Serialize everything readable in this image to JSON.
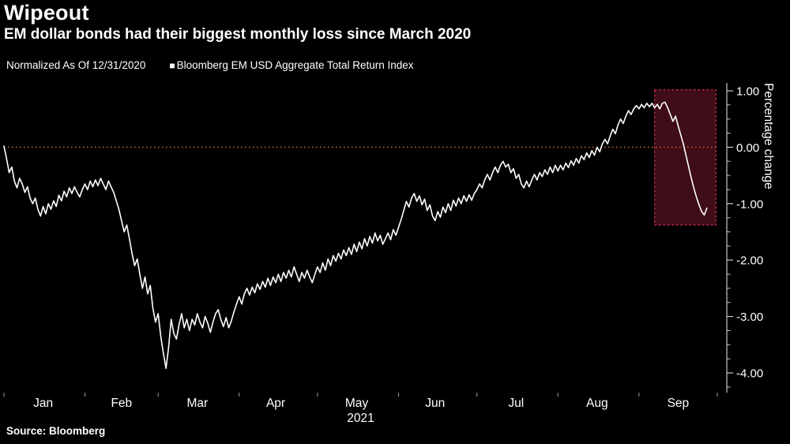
{
  "header": {
    "title": "Wipeout",
    "subtitle": "EM dollar bonds had their biggest monthly loss since March 2020"
  },
  "legend": {
    "normalized_label": "Normalized As Of 12/31/2020",
    "series_marker": "■",
    "series_label": "Bloomberg EM USD Aggregate Total Return Index"
  },
  "source": "Source: Bloomberg",
  "colors": {
    "background": "#000000",
    "text": "#ffffff",
    "axis": "#c8c8c8",
    "x_tick": "#9a9a9a"
  },
  "chart_data": {
    "type": "line",
    "title": "Wipeout",
    "subtitle": "EM dollar bonds had their biggest monthly loss since March 2020",
    "xlabel": "2021",
    "ylabel": "Percentage change",
    "x_unit": "day of year 2021",
    "xlim": [
      0,
      273
    ],
    "ylim": [
      -4.35,
      1.14
    ],
    "grid": false,
    "legend_position": "top-left",
    "y_ticks": [
      {
        "label": "1.00",
        "value": 1
      },
      {
        "label": "0.00",
        "value": 0
      },
      {
        "label": "-1.00",
        "value": -1
      },
      {
        "label": "-2.00",
        "value": -2
      },
      {
        "label": "-3.00",
        "value": -3
      },
      {
        "label": "-4.00",
        "value": -4
      }
    ],
    "y_minor_tick_step": 0.25,
    "x_ticks": [
      {
        "label": "Jan",
        "day": 15
      },
      {
        "label": "Feb",
        "day": 45
      },
      {
        "label": "Mar",
        "day": 74
      },
      {
        "label": "Apr",
        "day": 104
      },
      {
        "label": "May",
        "day": 135
      },
      {
        "label": "Jun",
        "day": 165
      },
      {
        "label": "Jul",
        "day": 196
      },
      {
        "label": "Aug",
        "day": 227
      },
      {
        "label": "Sep",
        "day": 258
      }
    ],
    "x_boundaries": [
      0,
      31,
      59,
      90,
      120,
      151,
      181,
      212,
      243,
      273
    ],
    "zero_line": {
      "value": 0,
      "style": "dotted",
      "color": "#d2691e"
    },
    "highlight_region": {
      "x_start": 249,
      "x_end": 272.5,
      "y_top": 1.02,
      "y_bottom": -1.38,
      "fill": "rgba(225,45,85,0.28)",
      "border": "#dd3355",
      "style": "dotted"
    },
    "series": [
      {
        "name": "Bloomberg EM USD Aggregate Total Return Index",
        "color": "#ffffff",
        "x_start": 0,
        "x_step": 1,
        "values": [
          0.02,
          -0.2,
          -0.45,
          -0.35,
          -0.6,
          -0.72,
          -0.55,
          -0.65,
          -0.8,
          -0.7,
          -0.9,
          -1.0,
          -0.9,
          -1.1,
          -1.22,
          -1.05,
          -1.18,
          -1.0,
          -1.1,
          -0.95,
          -1.05,
          -0.85,
          -0.95,
          -0.78,
          -0.88,
          -0.72,
          -0.82,
          -0.7,
          -0.8,
          -0.88,
          -0.75,
          -0.65,
          -0.75,
          -0.6,
          -0.7,
          -0.58,
          -0.68,
          -0.55,
          -0.65,
          -0.75,
          -0.6,
          -0.7,
          -0.8,
          -0.95,
          -1.1,
          -1.3,
          -1.5,
          -1.38,
          -1.62,
          -1.88,
          -2.1,
          -1.98,
          -2.25,
          -2.5,
          -2.3,
          -2.6,
          -2.45,
          -2.85,
          -3.1,
          -2.95,
          -3.35,
          -3.65,
          -3.92,
          -3.55,
          -3.05,
          -3.3,
          -3.4,
          -3.15,
          -2.95,
          -3.2,
          -3.05,
          -3.25,
          -3.05,
          -3.15,
          -2.95,
          -3.1,
          -3.2,
          -3.0,
          -3.12,
          -3.28,
          -3.1,
          -2.95,
          -2.88,
          -3.05,
          -3.18,
          -3.02,
          -3.2,
          -3.08,
          -2.92,
          -2.78,
          -2.65,
          -2.78,
          -2.6,
          -2.5,
          -2.62,
          -2.48,
          -2.58,
          -2.42,
          -2.52,
          -2.38,
          -2.48,
          -2.32,
          -2.45,
          -2.3,
          -2.4,
          -2.25,
          -2.38,
          -2.22,
          -2.32,
          -2.18,
          -2.3,
          -2.12,
          -2.25,
          -2.38,
          -2.22,
          -2.32,
          -2.18,
          -2.3,
          -2.4,
          -2.25,
          -2.12,
          -2.22,
          -2.05,
          -2.18,
          -1.98,
          -2.1,
          -1.92,
          -2.02,
          -1.88,
          -1.98,
          -1.82,
          -1.92,
          -1.78,
          -1.9,
          -1.72,
          -1.85,
          -1.68,
          -1.8,
          -1.62,
          -1.75,
          -1.58,
          -1.7,
          -1.52,
          -1.66,
          -1.56,
          -1.72,
          -1.62,
          -1.52,
          -1.64,
          -1.46,
          -1.56,
          -1.42,
          -1.28,
          -1.12,
          -0.96,
          -1.06,
          -0.9,
          -0.82,
          -0.96,
          -0.86,
          -1.02,
          -0.92,
          -1.12,
          -1.02,
          -1.22,
          -1.3,
          -1.14,
          -1.24,
          -1.06,
          -1.16,
          -1.0,
          -1.12,
          -0.94,
          -1.04,
          -0.9,
          -1.0,
          -0.86,
          -0.96,
          -0.84,
          -0.94,
          -0.82,
          -0.75,
          -0.65,
          -0.72,
          -0.58,
          -0.48,
          -0.58,
          -0.45,
          -0.35,
          -0.45,
          -0.32,
          -0.25,
          -0.35,
          -0.3,
          -0.45,
          -0.38,
          -0.55,
          -0.48,
          -0.65,
          -0.72,
          -0.6,
          -0.7,
          -0.58,
          -0.48,
          -0.58,
          -0.45,
          -0.52,
          -0.4,
          -0.48,
          -0.35,
          -0.45,
          -0.32,
          -0.42,
          -0.32,
          -0.4,
          -0.28,
          -0.36,
          -0.24,
          -0.32,
          -0.2,
          -0.28,
          -0.15,
          -0.22,
          -0.1,
          -0.18,
          -0.06,
          -0.14,
          0.0,
          -0.08,
          0.06,
          0.14,
          0.06,
          0.2,
          0.32,
          0.24,
          0.4,
          0.5,
          0.42,
          0.55,
          0.65,
          0.58,
          0.68,
          0.74,
          0.68,
          0.76,
          0.7,
          0.78,
          0.72,
          0.78,
          0.7,
          0.76,
          0.68,
          0.78,
          0.8,
          0.7,
          0.58,
          0.46,
          0.55,
          0.38,
          0.22,
          0.06,
          -0.14,
          -0.34,
          -0.54,
          -0.72,
          -0.88,
          -1.02,
          -1.14,
          -1.2,
          -1.08
        ]
      }
    ]
  }
}
